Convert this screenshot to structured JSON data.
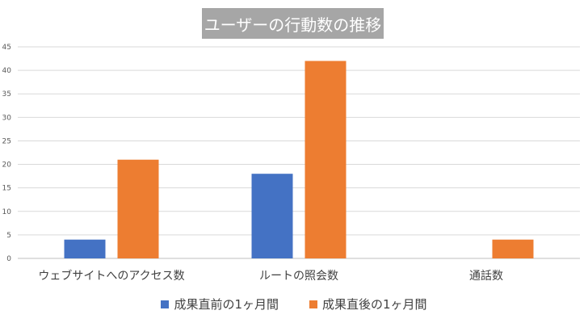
{
  "chart_data": {
    "type": "bar",
    "title": "ユーザーの行動数の推移",
    "categories": [
      "ウェブサイトへのアクセス数",
      "ルートの照会数",
      "通話数"
    ],
    "series": [
      {
        "name": "成果直前の1ヶ月間",
        "color": "#4472c4",
        "values": [
          4,
          18,
          0
        ]
      },
      {
        "name": "成果直後の1ヶ月間",
        "color": "#ed7d31",
        "values": [
          21,
          42,
          4
        ]
      }
    ],
    "ylim": [
      0,
      45
    ],
    "yticks": [
      0,
      5,
      10,
      15,
      20,
      25,
      30,
      35,
      40,
      45
    ],
    "grid": true,
    "legend_position": "bottom"
  }
}
